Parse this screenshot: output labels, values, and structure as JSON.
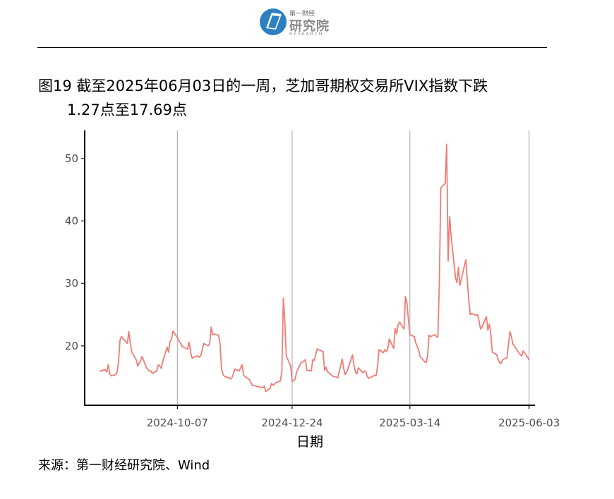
{
  "header": {
    "logo_small": "第一财经",
    "logo_main": "研究院",
    "logo_en": "RESEARCH"
  },
  "title": {
    "line1": "图19  截至2025年06月03日的一周，芝加哥期权交易所VIX指数下跌",
    "line2": "1.27点至17.69点"
  },
  "source": "来源：第一财经研究院、Wind",
  "colors": {
    "line": "#f07c74",
    "grid": "#b3b3b3",
    "axis": "#000000",
    "logo": "#2d7fc1"
  },
  "chart_data": {
    "type": "line",
    "title": "",
    "xlabel": "日期",
    "ylabel": "",
    "xlim": [
      "2024-08-05",
      "2025-06-07"
    ],
    "ylim": [
      10.5,
      54.5
    ],
    "yticks": [
      20,
      30,
      40,
      50
    ],
    "xticks": [
      "2024-10-07",
      "2024-12-24",
      "2025-03-14",
      "2025-06-03"
    ],
    "grid": "vertical",
    "series": [
      {
        "x": [
          "2024-08-15",
          "2024-08-16",
          "2024-08-19",
          "2024-08-20",
          "2024-08-21",
          "2024-08-22",
          "2024-08-23",
          "2024-08-26",
          "2024-08-27",
          "2024-08-28",
          "2024-08-29",
          "2024-08-30",
          "2024-09-03",
          "2024-09-04",
          "2024-09-05",
          "2024-09-06",
          "2024-09-09",
          "2024-09-10",
          "2024-09-11",
          "2024-09-12",
          "2024-09-13",
          "2024-09-16",
          "2024-09-17",
          "2024-09-18",
          "2024-09-19",
          "2024-09-20",
          "2024-09-23",
          "2024-09-24",
          "2024-09-25",
          "2024-09-26",
          "2024-09-27",
          "2024-09-30",
          "2024-10-01",
          "2024-10-02",
          "2024-10-03",
          "2024-10-04",
          "2024-10-07",
          "2024-10-08",
          "2024-10-09",
          "2024-10-10",
          "2024-10-11",
          "2024-10-14",
          "2024-10-15",
          "2024-10-16",
          "2024-10-17",
          "2024-10-18",
          "2024-10-21",
          "2024-10-22",
          "2024-10-23",
          "2024-10-24",
          "2024-10-25",
          "2024-10-28",
          "2024-10-29",
          "2024-10-30",
          "2024-10-31",
          "2024-11-01",
          "2024-11-04",
          "2024-11-05",
          "2024-11-06",
          "2024-11-07",
          "2024-11-08",
          "2024-11-11",
          "2024-11-12",
          "2024-11-13",
          "2024-11-14",
          "2024-11-15",
          "2024-11-18",
          "2024-11-19",
          "2024-11-20",
          "2024-11-21",
          "2024-11-22",
          "2024-11-25",
          "2024-11-26",
          "2024-11-27",
          "2024-11-29",
          "2024-12-02",
          "2024-12-03",
          "2024-12-04",
          "2024-12-05",
          "2024-12-06",
          "2024-12-09",
          "2024-12-10",
          "2024-12-11",
          "2024-12-12",
          "2024-12-13",
          "2024-12-16",
          "2024-12-17",
          "2024-12-18",
          "2024-12-19",
          "2024-12-20",
          "2024-12-23",
          "2024-12-24",
          "2024-12-26",
          "2024-12-27",
          "2024-12-30",
          "2024-12-31",
          "2025-01-02",
          "2025-01-03",
          "2025-01-06",
          "2025-01-07",
          "2025-01-08",
          "2025-01-10",
          "2025-01-13",
          "2025-01-14",
          "2025-01-15",
          "2025-01-16",
          "2025-01-17",
          "2025-01-21",
          "2025-01-22",
          "2025-01-23",
          "2025-01-24",
          "2025-01-27",
          "2025-01-28",
          "2025-01-29",
          "2025-01-30",
          "2025-01-31",
          "2025-02-03",
          "2025-02-04",
          "2025-02-05",
          "2025-02-06",
          "2025-02-07",
          "2025-02-10",
          "2025-02-11",
          "2025-02-12",
          "2025-02-13",
          "2025-02-14",
          "2025-02-18",
          "2025-02-19",
          "2025-02-20",
          "2025-02-21",
          "2025-02-24",
          "2025-02-25",
          "2025-02-26",
          "2025-02-27",
          "2025-02-28",
          "2025-03-03",
          "2025-03-04",
          "2025-03-05",
          "2025-03-06",
          "2025-03-07",
          "2025-03-10",
          "2025-03-11",
          "2025-03-12",
          "2025-03-13",
          "2025-03-14",
          "2025-03-17",
          "2025-03-18",
          "2025-03-19",
          "2025-03-20",
          "2025-03-21",
          "2025-03-24",
          "2025-03-25",
          "2025-03-26",
          "2025-03-27",
          "2025-03-28",
          "2025-03-31",
          "2025-04-01",
          "2025-04-02",
          "2025-04-03",
          "2025-04-04",
          "2025-04-07",
          "2025-04-08",
          "2025-04-09",
          "2025-04-10",
          "2025-04-11",
          "2025-04-14",
          "2025-04-15",
          "2025-04-16",
          "2025-04-17",
          "2025-04-21",
          "2025-04-22",
          "2025-04-23",
          "2025-04-24",
          "2025-04-25",
          "2025-04-28",
          "2025-04-29",
          "2025-04-30",
          "2025-05-01",
          "2025-05-02",
          "2025-05-05",
          "2025-05-06",
          "2025-05-07",
          "2025-05-08",
          "2025-05-09",
          "2025-05-12",
          "2025-05-13",
          "2025-05-14",
          "2025-05-15",
          "2025-05-16",
          "2025-05-19",
          "2025-05-20",
          "2025-05-21",
          "2025-05-22",
          "2025-05-23",
          "2025-05-27",
          "2025-05-28",
          "2025-05-29",
          "2025-05-30",
          "2025-06-02",
          "2025-06-03"
        ],
        "y": [
          15.9,
          16.0,
          16.2,
          15.8,
          17.0,
          15.6,
          15.2,
          15.4,
          15.8,
          17.5,
          20.9,
          21.5,
          20.4,
          22.3,
          20.5,
          19.0,
          17.8,
          16.8,
          17.2,
          17.6,
          18.3,
          16.5,
          16.2,
          16.0,
          16.0,
          15.6,
          16.0,
          17.0,
          16.8,
          16.4,
          17.5,
          19.8,
          19.0,
          20.7,
          21.0,
          22.4,
          21.3,
          20.8,
          20.5,
          20.0,
          19.8,
          19.5,
          20.6,
          19.0,
          18.0,
          18.2,
          18.4,
          18.2,
          18.5,
          19.5,
          20.4,
          20.0,
          20.4,
          23.0,
          21.8,
          21.9,
          21.7,
          20.4,
          16.3,
          15.5,
          15.1,
          14.9,
          14.7,
          14.9,
          15.5,
          16.3,
          16.0,
          16.5,
          17.0,
          15.3,
          15.1,
          14.6,
          14.1,
          13.7,
          13.6,
          13.4,
          13.3,
          13.3,
          13.6,
          12.7,
          13.2,
          14.0,
          13.7,
          13.9,
          14.1,
          14.4,
          15.9,
          27.6,
          24.0,
          18.4,
          16.8,
          14.3,
          14.7,
          15.8,
          17.3,
          17.4,
          17.8,
          16.1,
          16.0,
          17.8,
          17.7,
          19.5,
          19.2,
          19.1,
          16.1,
          16.6,
          15.9,
          15.1,
          15.1,
          15.0,
          14.9,
          17.9,
          16.4,
          15.4,
          15.8,
          16.4,
          18.6,
          17.0,
          15.8,
          15.5,
          16.5,
          15.7,
          16.0,
          15.9,
          15.1,
          14.8,
          15.3,
          15.2,
          16.6,
          19.4,
          18.9,
          19.4,
          19.1,
          19.5,
          21.1,
          19.6,
          22.8,
          21.9,
          23.4,
          23.8,
          22.7,
          27.9,
          26.9,
          24.2,
          21.8,
          21.5,
          20.5,
          19.9,
          19.3,
          18.3,
          17.5,
          17.3,
          18.3,
          21.7,
          21.5,
          21.8,
          21.5,
          21.4,
          30.0,
          45.3,
          46.0,
          52.3,
          33.6,
          40.7,
          37.6,
          30.9,
          30.1,
          32.6,
          29.7,
          33.8,
          30.6,
          27.3,
          25.0,
          25.2,
          24.9,
          25.0,
          24.0,
          22.7,
          23.0,
          24.7,
          22.5,
          23.5,
          21.9,
          19.0,
          18.6,
          17.8,
          17.3,
          17.2,
          17.8,
          18.1,
          20.3,
          22.3,
          21.5,
          20.3,
          18.9,
          18.6,
          18.4,
          19.2,
          18.2,
          17.7
        ]
      }
    ]
  }
}
